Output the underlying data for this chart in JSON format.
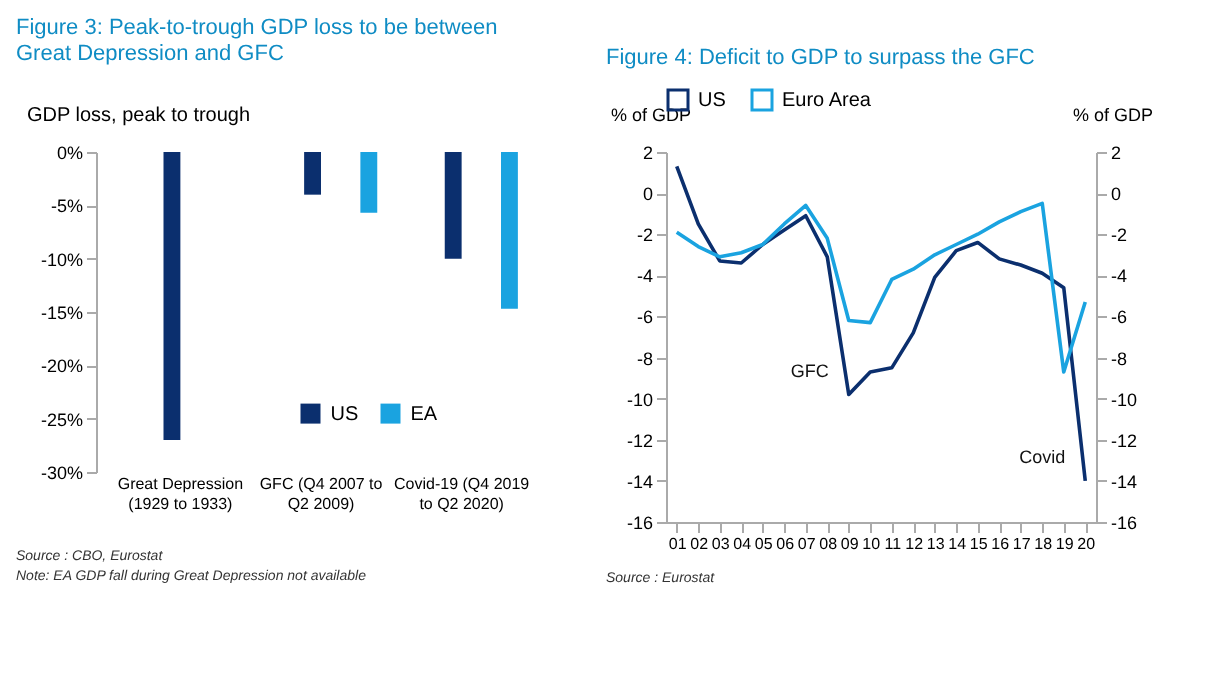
{
  "chart_data": [
    {
      "type": "bar",
      "title": "Figure 3: Peak-to-trough GDP loss to be between Great Depression and GFC",
      "ylabel": "GDP loss, peak to trough",
      "categories": [
        "Great Depression (1929 to 1933)",
        "GFC (Q4 2007 to Q2 2009)",
        "Covid-19 (Q4 2019 to Q2 2020)"
      ],
      "series": [
        {
          "name": "US",
          "color": "#0b2f6e",
          "values": [
            -27,
            -4,
            -10
          ]
        },
        {
          "name": "EA",
          "color": "#1aa3e0",
          "values": [
            null,
            -5.7,
            -14.7
          ]
        }
      ],
      "ylim": [
        -30,
        0
      ],
      "yticks": [
        {
          "value": -30,
          "label": "-30%"
        },
        {
          "value": -25,
          "label": "-25%"
        },
        {
          "value": -20,
          "label": "-20%"
        },
        {
          "value": -15,
          "label": "-15%"
        },
        {
          "value": -10,
          "label": "-10%"
        },
        {
          "value": -5,
          "label": "-5%"
        },
        {
          "value": 0,
          "label": "0%"
        }
      ],
      "legend": "bottom",
      "grid": false,
      "annotations": [
        "Source : CBO, Eurostat",
        "Note: EA GDP fall during Great Depression not available"
      ]
    },
    {
      "type": "line",
      "title": "Figure 4: Deficit to GDP to surpass the GFC",
      "ylabel": "% of GDP",
      "y2label": "% of GDP",
      "categories": [
        "01",
        "02",
        "03",
        "04",
        "05",
        "06",
        "07",
        "08",
        "09",
        "10",
        "11",
        "12",
        "13",
        "14",
        "15",
        "16",
        "17",
        "18",
        "19",
        "20"
      ],
      "series": [
        {
          "name": "US",
          "color": "#0b2f6e",
          "values": [
            1.3,
            -1.5,
            -3.3,
            -3.4,
            -2.5,
            -1.8,
            -1.1,
            -3.1,
            -9.8,
            -8.7,
            -8.5,
            -6.8,
            -4.1,
            -2.8,
            -2.4,
            -3.2,
            -3.5,
            -3.9,
            -4.6,
            -14.0
          ]
        },
        {
          "name": "Euro Area",
          "color": "#1aa3e0",
          "values": [
            -1.9,
            -2.6,
            -3.1,
            -2.9,
            -2.5,
            -1.5,
            -0.6,
            -2.2,
            -6.2,
            -6.3,
            -4.2,
            -3.7,
            -3.0,
            -2.5,
            -2.0,
            -1.4,
            -0.9,
            -0.5,
            -8.7,
            -5.3
          ]
        }
      ],
      "ylim": [
        -16,
        2
      ],
      "yticks": [
        -16,
        -14,
        -12,
        -10,
        -8,
        -6,
        -4,
        -2,
        0,
        2
      ],
      "y2lim": [
        -16,
        2
      ],
      "y2ticks": [
        -16,
        -14,
        -12,
        -10,
        -8,
        -6,
        -4,
        -2,
        0,
        2
      ],
      "legend": "top",
      "grid": false,
      "marker": "none",
      "line_style": "solid",
      "annotations": [
        {
          "text": "GFC",
          "x": "09",
          "y": -9.8
        },
        {
          "text": "Covid",
          "x": "20",
          "y": -14.0
        },
        "Source : Eurostat"
      ]
    }
  ]
}
